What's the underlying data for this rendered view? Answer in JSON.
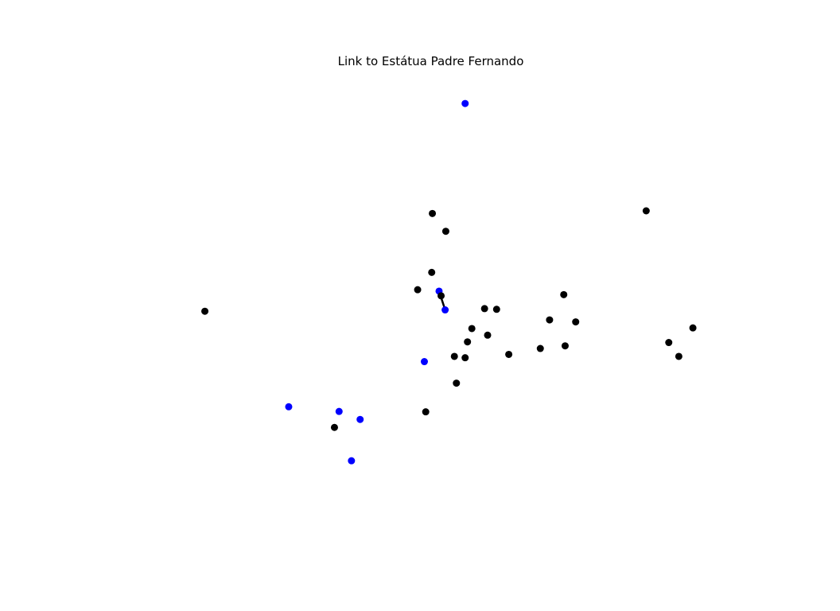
{
  "chart_data": {
    "type": "scatter",
    "title": "Link to Estátua Padre Fernando",
    "axes_visible": false,
    "grid": false,
    "xlim": [
      0,
      1000
    ],
    "ylim": [
      0,
      1000
    ],
    "colors": {
      "highlighted": "#0000ff",
      "default": "#000000",
      "link": "#000000"
    },
    "points": [
      {
        "x": 552.8,
        "y": 939.5,
        "group": "highlighted"
      },
      {
        "x": 830.7,
        "y": 706.9,
        "group": "default"
      },
      {
        "x": 502.5,
        "y": 701.1,
        "group": "default"
      },
      {
        "x": 523.1,
        "y": 662.6,
        "group": "default"
      },
      {
        "x": 501.5,
        "y": 573.5,
        "group": "default"
      },
      {
        "x": 479.9,
        "y": 535.9,
        "group": "default"
      },
      {
        "x": 512.8,
        "y": 532.8,
        "group": "highlighted"
      },
      {
        "x": 515.9,
        "y": 522.7,
        "group": "default"
      },
      {
        "x": 704.2,
        "y": 525.3,
        "group": "default"
      },
      {
        "x": 522.1,
        "y": 492.2,
        "group": "highlighted"
      },
      {
        "x": 153.3,
        "y": 489.3,
        "group": "default"
      },
      {
        "x": 582.6,
        "y": 495.0,
        "group": "default"
      },
      {
        "x": 601.1,
        "y": 493.5,
        "group": "default"
      },
      {
        "x": 682.4,
        "y": 470.5,
        "group": "default"
      },
      {
        "x": 722.5,
        "y": 466.2,
        "group": "default"
      },
      {
        "x": 563.1,
        "y": 451.8,
        "group": "default"
      },
      {
        "x": 902.4,
        "y": 453.2,
        "group": "default"
      },
      {
        "x": 587.3,
        "y": 437.4,
        "group": "default"
      },
      {
        "x": 556.4,
        "y": 422.9,
        "group": "default"
      },
      {
        "x": 865.4,
        "y": 421.5,
        "group": "default"
      },
      {
        "x": 706.3,
        "y": 414.3,
        "group": "default"
      },
      {
        "x": 668.2,
        "y": 408.6,
        "group": "default"
      },
      {
        "x": 619.8,
        "y": 395.7,
        "group": "default"
      },
      {
        "x": 536.3,
        "y": 391.4,
        "group": "default"
      },
      {
        "x": 552.8,
        "y": 388.5,
        "group": "default"
      },
      {
        "x": 880.8,
        "y": 391.4,
        "group": "default"
      },
      {
        "x": 490.2,
        "y": 380.1,
        "group": "highlighted"
      },
      {
        "x": 539.4,
        "y": 333.5,
        "group": "default"
      },
      {
        "x": 282.0,
        "y": 282.3,
        "group": "highlighted"
      },
      {
        "x": 492.3,
        "y": 271.3,
        "group": "default"
      },
      {
        "x": 359.3,
        "y": 272.1,
        "group": "highlighted"
      },
      {
        "x": 391.6,
        "y": 254.8,
        "group": "highlighted"
      },
      {
        "x": 352.2,
        "y": 237.5,
        "group": "default"
      },
      {
        "x": 378.3,
        "y": 165.2,
        "group": "highlighted"
      }
    ],
    "links": [
      {
        "from": [
          512.8,
          532.8
        ],
        "to": [
          522.1,
          492.2
        ]
      },
      {
        "from": [
          512.8,
          532.8
        ],
        "to": [
          515.9,
          522.7
        ]
      }
    ]
  }
}
